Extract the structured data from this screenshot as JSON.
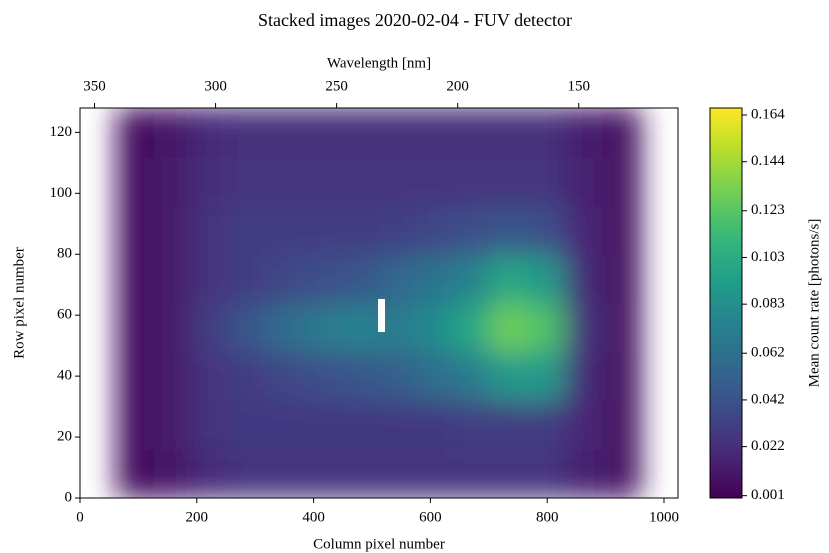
{
  "chart_data": {
    "type": "heatmap",
    "title": "Stacked images 2020-02-04 - FUV detector",
    "xlabel": "Column pixel number",
    "ylabel": "Row pixel number",
    "x2label": "Wavelength [nm]",
    "colorbar_label": "Mean count rate [photons/s]",
    "colormap": "viridis",
    "xlim": [
      0,
      1024
    ],
    "xticks": [
      0,
      200,
      400,
      600,
      800,
      1000
    ],
    "ylim": [
      0,
      128
    ],
    "yticks": [
      0,
      20,
      40,
      60,
      80,
      100,
      120
    ],
    "x2lim": [
      356,
      109
    ],
    "x2ticks": [
      350,
      300,
      250,
      200,
      150
    ],
    "clim": [
      0,
      0.167
    ],
    "cticks": [
      0.001,
      0.022,
      0.042,
      0.062,
      0.083,
      0.103,
      0.123,
      0.144,
      0.164
    ],
    "x_bins": [
      0,
      64,
      128,
      192,
      256,
      320,
      384,
      448,
      512,
      576,
      640,
      704,
      768,
      832,
      896,
      960,
      1024
    ],
    "y_bins": [
      0,
      16,
      32,
      48,
      64,
      80,
      96,
      112,
      128
    ],
    "z": [
      [
        null,
        0.005,
        0.01,
        0.02,
        0.025,
        0.025,
        0.025,
        0.025,
        0.025,
        0.025,
        0.025,
        0.025,
        0.025,
        0.015,
        0.008,
        null
      ],
      [
        null,
        0.005,
        0.012,
        0.025,
        0.028,
        0.028,
        0.028,
        0.028,
        0.028,
        0.028,
        0.03,
        0.03,
        0.03,
        0.018,
        0.008,
        null
      ],
      [
        null,
        0.005,
        0.012,
        0.025,
        0.03,
        0.035,
        0.04,
        0.045,
        0.05,
        0.06,
        0.07,
        0.09,
        0.09,
        0.02,
        0.008,
        null
      ],
      [
        null,
        0.005,
        0.012,
        0.03,
        0.045,
        0.06,
        0.07,
        0.075,
        0.07,
        0.08,
        0.1,
        0.13,
        0.12,
        0.025,
        0.008,
        null
      ],
      [
        null,
        0.005,
        0.012,
        0.025,
        0.03,
        0.035,
        0.04,
        0.045,
        0.055,
        0.065,
        0.075,
        0.1,
        0.09,
        0.02,
        0.008,
        null
      ],
      [
        null,
        0.005,
        0.012,
        0.025,
        0.03,
        0.03,
        0.03,
        0.03,
        0.032,
        0.035,
        0.04,
        0.045,
        0.04,
        0.018,
        0.008,
        null
      ],
      [
        null,
        0.005,
        0.012,
        0.022,
        0.025,
        0.025,
        0.025,
        0.025,
        0.025,
        0.025,
        0.025,
        0.025,
        0.025,
        0.015,
        0.008,
        null
      ],
      [
        null,
        0.005,
        0.01,
        0.02,
        0.023,
        0.023,
        0.023,
        0.023,
        0.023,
        0.023,
        0.023,
        0.023,
        0.023,
        0.014,
        0.008,
        null
      ]
    ]
  }
}
